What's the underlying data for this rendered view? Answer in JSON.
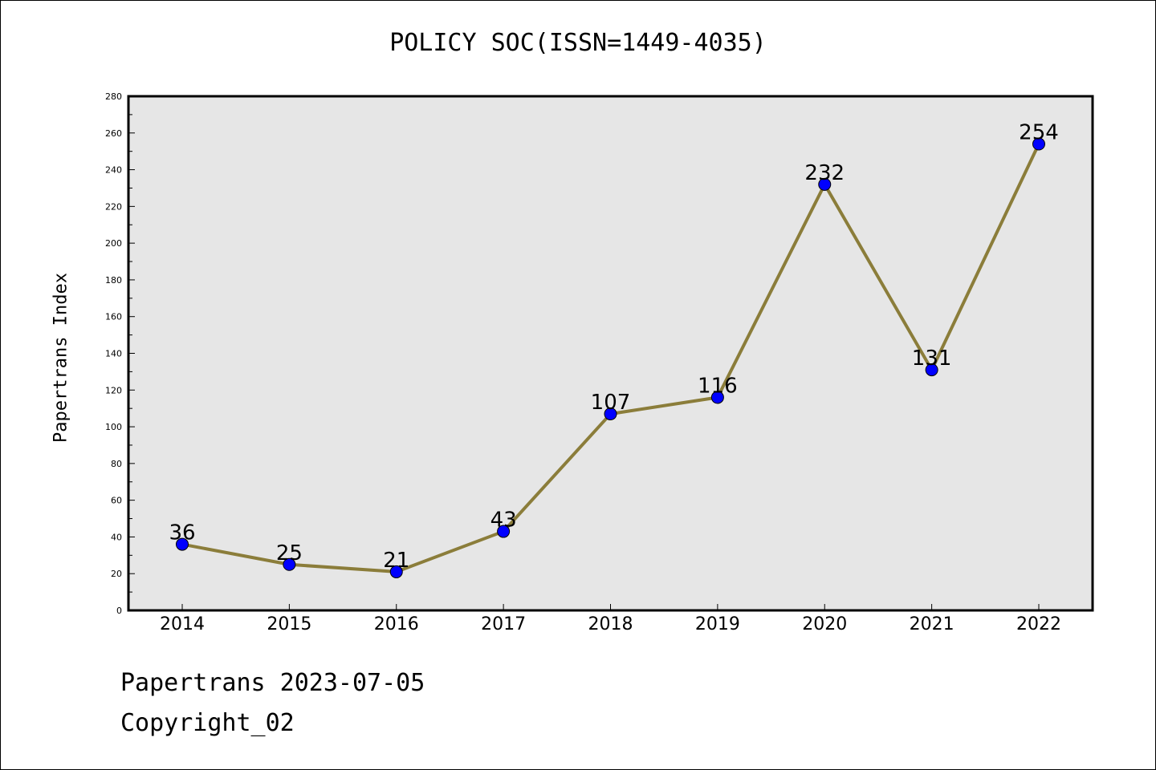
{
  "chart_data": {
    "type": "line",
    "title": "POLICY SOC(ISSN=1449-4035)",
    "xlabel": "",
    "ylabel": "Papertrans Index",
    "categories": [
      "2014",
      "2015",
      "2016",
      "2017",
      "2018",
      "2019",
      "2020",
      "2021",
      "2022"
    ],
    "series": [
      {
        "values": [
          36,
          25,
          21,
          43,
          107,
          116,
          232,
          131,
          254
        ]
      }
    ],
    "data_labels": [
      "36",
      "25",
      "21",
      "43",
      "107",
      "116",
      "232",
      "131",
      "254"
    ],
    "ylim": [
      0,
      280
    ],
    "yticks": [
      "0",
      "20",
      "40",
      "60",
      "80",
      "100",
      "120",
      "140",
      "160",
      "180",
      "200",
      "220",
      "240",
      "260",
      "280"
    ],
    "grid": false,
    "legend": "none",
    "colors": {
      "plot_background": "#e6e6e6",
      "line": "#8b7d3a",
      "marker": "#0000ff"
    }
  },
  "footer": {
    "date_text": "Papertrans 2023-07-05",
    "copyright_text": "Copyright_02"
  }
}
